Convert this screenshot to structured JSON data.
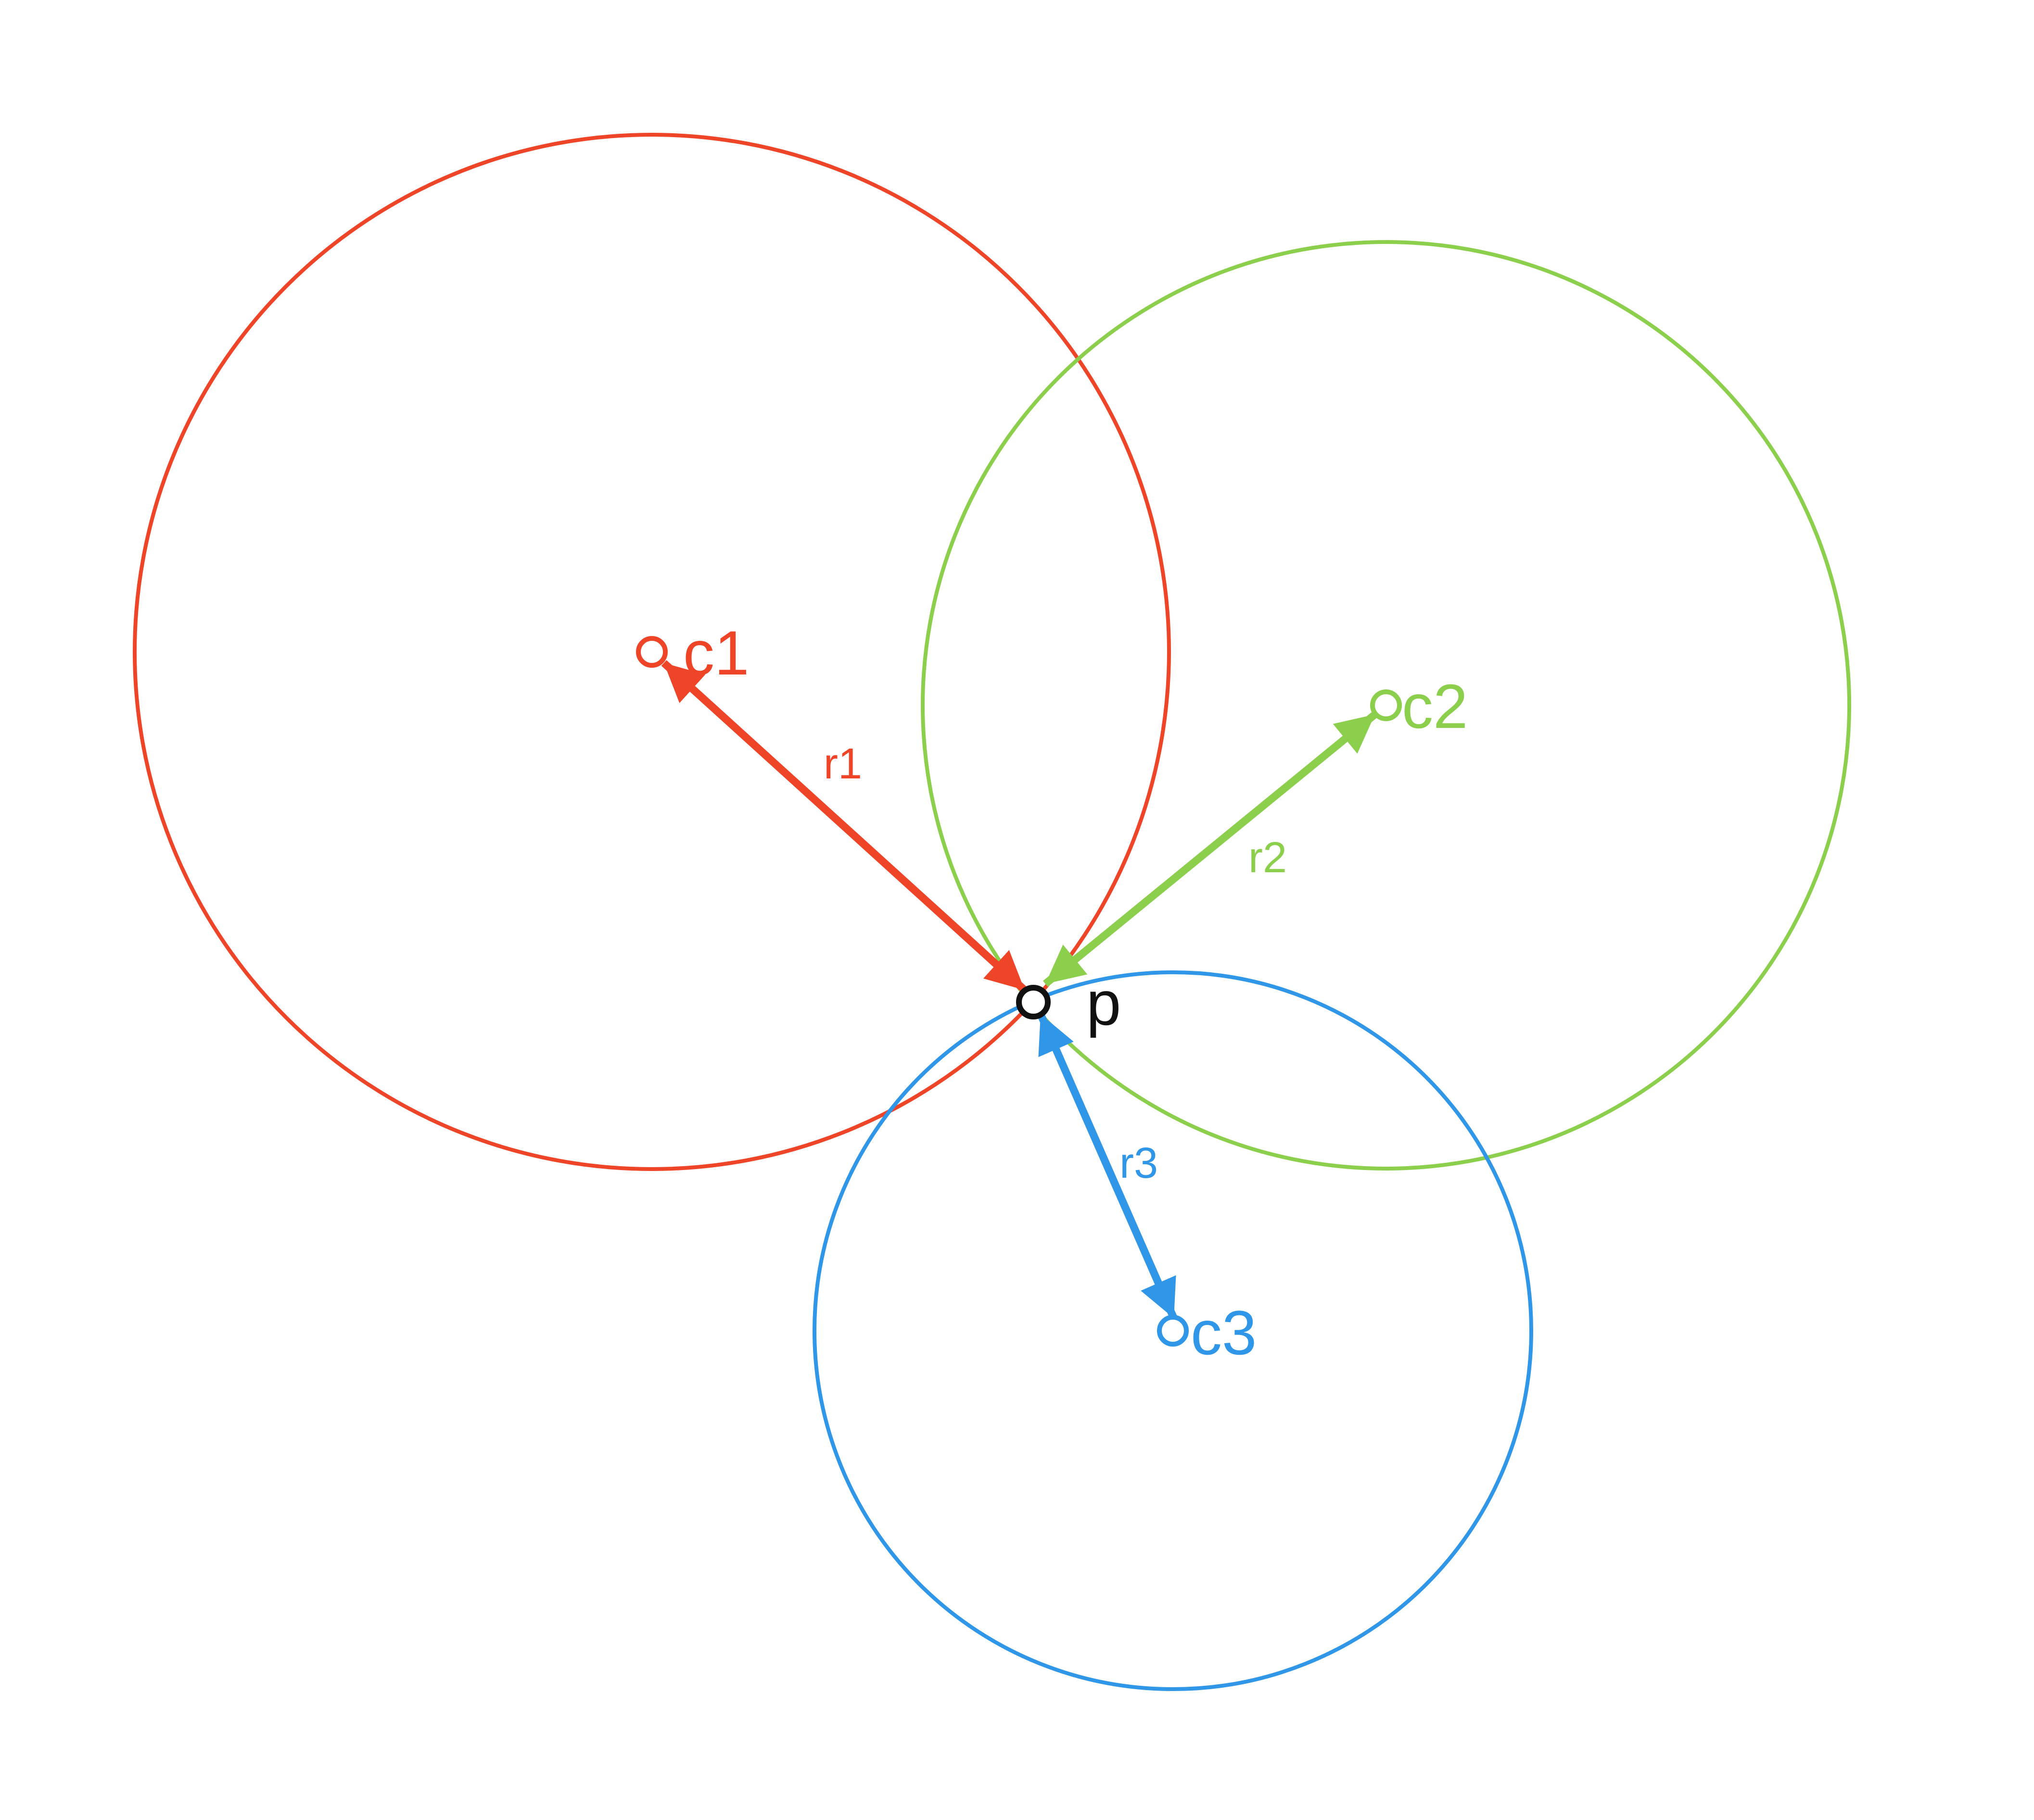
{
  "colors": {
    "red": "#ee4528",
    "green": "#8ccf4d",
    "blue": "#2f96e8",
    "black": "#111111"
  },
  "circles": [
    {
      "center_label": "c1",
      "radius_label": "r1",
      "color": "#ee4528"
    },
    {
      "center_label": "c2",
      "radius_label": "r2",
      "color": "#8ccf4d"
    },
    {
      "center_label": "c3",
      "radius_label": "r3",
      "color": "#2f96e8"
    }
  ],
  "point": {
    "label": "p",
    "color": "#111111"
  }
}
